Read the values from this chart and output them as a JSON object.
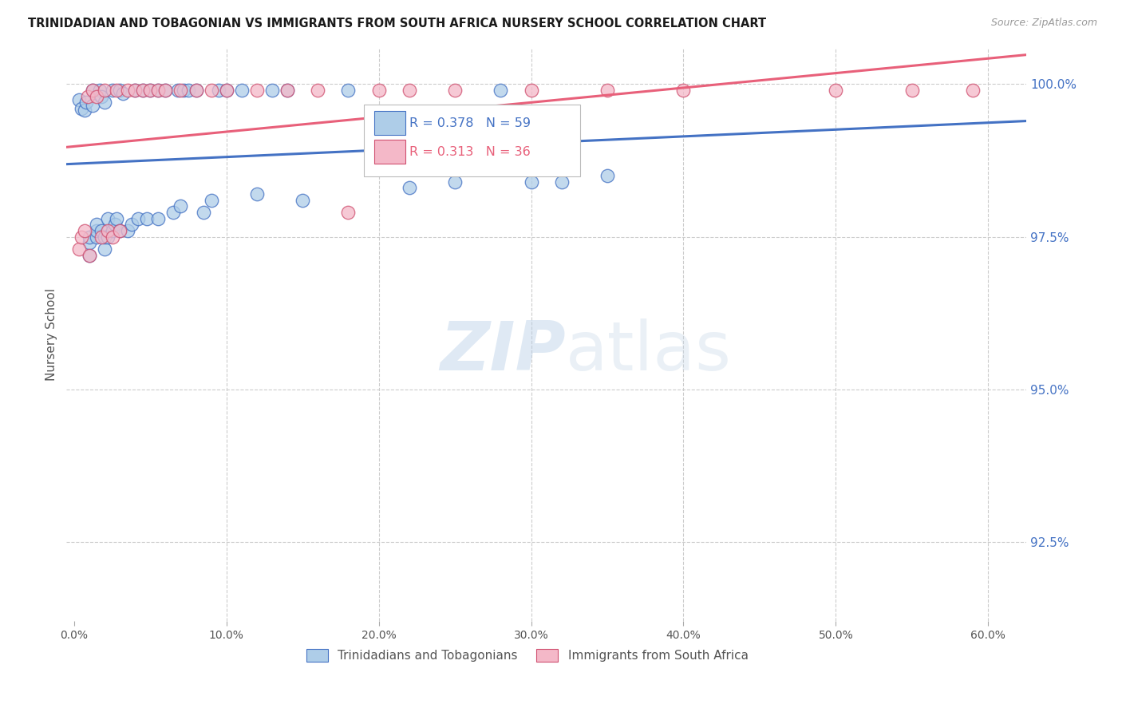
{
  "title": "TRINIDADIAN AND TOBAGONIAN VS IMMIGRANTS FROM SOUTH AFRICA NURSERY SCHOOL CORRELATION CHART",
  "source": "Source: ZipAtlas.com",
  "xlabel_ticks": [
    "0.0%",
    "10.0%",
    "20.0%",
    "30.0%",
    "40.0%",
    "50.0%",
    "60.0%"
  ],
  "xlabel_vals": [
    0.0,
    0.1,
    0.2,
    0.3,
    0.4,
    0.5,
    0.6
  ],
  "ylabel_ticks": [
    "92.5%",
    "95.0%",
    "97.5%",
    "100.0%"
  ],
  "ylabel_vals": [
    0.925,
    0.95,
    0.975,
    1.0
  ],
  "xlim": [
    -0.005,
    0.625
  ],
  "ylim": [
    0.912,
    1.006
  ],
  "ylabel_label": "Nursery School",
  "legend_blue_label": "Trinidadians and Tobagonians",
  "legend_pink_label": "Immigrants from South Africa",
  "R_blue": 0.378,
  "N_blue": 59,
  "R_pink": 0.313,
  "N_pink": 36,
  "blue_color": "#aecde8",
  "pink_color": "#f4b8c8",
  "trendline_blue": "#4472c4",
  "trendline_pink": "#e8607a",
  "blue_edge": "#4472c4",
  "pink_edge": "#d05070",
  "blue_points_x": [
    0.003,
    0.005,
    0.007,
    0.008,
    0.01,
    0.01,
    0.01,
    0.012,
    0.012,
    0.015,
    0.015,
    0.015,
    0.017,
    0.018,
    0.018,
    0.02,
    0.02,
    0.02,
    0.022,
    0.022,
    0.025,
    0.025,
    0.027,
    0.028,
    0.03,
    0.03,
    0.032,
    0.035,
    0.038,
    0.04,
    0.042,
    0.045,
    0.048,
    0.05,
    0.055,
    0.055,
    0.06,
    0.065,
    0.068,
    0.07,
    0.072,
    0.075,
    0.08,
    0.085,
    0.09,
    0.095,
    0.1,
    0.11,
    0.12,
    0.13,
    0.14,
    0.15,
    0.18,
    0.22,
    0.25,
    0.28,
    0.3,
    0.32,
    0.35
  ],
  "blue_points_y": [
    0.9975,
    0.996,
    0.9958,
    0.997,
    0.972,
    0.974,
    0.975,
    0.999,
    0.9965,
    0.975,
    0.976,
    0.977,
    0.999,
    0.998,
    0.976,
    0.997,
    0.973,
    0.975,
    0.978,
    0.975,
    0.976,
    0.999,
    0.977,
    0.978,
    0.999,
    0.976,
    0.9985,
    0.976,
    0.977,
    0.999,
    0.978,
    0.999,
    0.978,
    0.999,
    0.978,
    0.999,
    0.999,
    0.979,
    0.999,
    0.98,
    0.999,
    0.999,
    0.999,
    0.979,
    0.981,
    0.999,
    0.999,
    0.999,
    0.982,
    0.999,
    0.999,
    0.981,
    0.999,
    0.983,
    0.984,
    0.999,
    0.984,
    0.984,
    0.985
  ],
  "pink_points_x": [
    0.003,
    0.005,
    0.007,
    0.009,
    0.01,
    0.012,
    0.015,
    0.018,
    0.02,
    0.022,
    0.025,
    0.028,
    0.03,
    0.035,
    0.04,
    0.045,
    0.05,
    0.055,
    0.06,
    0.07,
    0.08,
    0.09,
    0.1,
    0.12,
    0.14,
    0.16,
    0.18,
    0.2,
    0.22,
    0.25,
    0.3,
    0.35,
    0.4,
    0.5,
    0.55,
    0.59
  ],
  "pink_points_y": [
    0.973,
    0.975,
    0.976,
    0.998,
    0.972,
    0.999,
    0.998,
    0.975,
    0.999,
    0.976,
    0.975,
    0.999,
    0.976,
    0.999,
    0.999,
    0.999,
    0.999,
    0.999,
    0.999,
    0.999,
    0.999,
    0.999,
    0.999,
    0.999,
    0.999,
    0.999,
    0.979,
    0.999,
    0.999,
    0.999,
    0.999,
    0.999,
    0.999,
    0.999,
    0.999,
    0.999
  ],
  "watermark_zip": "ZIP",
  "watermark_atlas": "atlas",
  "grid_color": "#cccccc",
  "background_color": "#ffffff"
}
